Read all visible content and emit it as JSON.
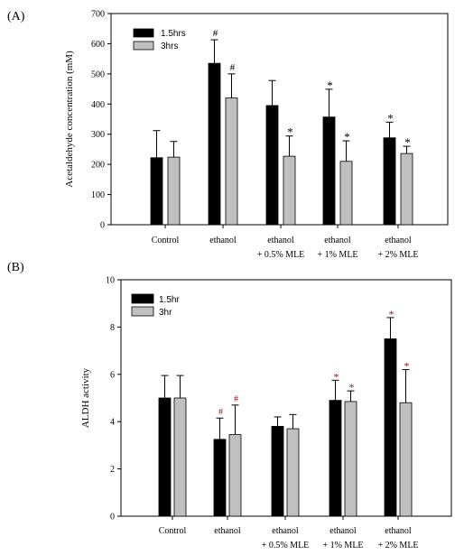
{
  "chart_data": [
    {
      "panel": "(A)",
      "type": "bar",
      "ylabel": "Acetaldehyde concentration (mM)",
      "ylim": [
        0,
        700
      ],
      "yticks": [
        0,
        100,
        200,
        300,
        400,
        500,
        600,
        700
      ],
      "categories": [
        [
          "Control"
        ],
        [
          "ethanol"
        ],
        [
          "ethanol",
          "+ 0.5% MLE"
        ],
        [
          "ethanol",
          "+ 1% MLE"
        ],
        [
          "ethanol",
          "+ 2% MLE"
        ]
      ],
      "legend_position": "top-left",
      "series": [
        {
          "name": "1.5hrs",
          "color": "#000000",
          "values": [
            222,
            535,
            395,
            357,
            288
          ],
          "errors": [
            90,
            78,
            83,
            92,
            52
          ],
          "marks": [
            "",
            "#",
            "",
            "*",
            "*"
          ]
        },
        {
          "name": "3hrs",
          "color": "#c0c0c0",
          "values": [
            224,
            420,
            227,
            210,
            236
          ],
          "errors": [
            52,
            80,
            67,
            68,
            24
          ],
          "marks": [
            "",
            "#",
            "*",
            "*",
            "*"
          ]
        }
      ]
    },
    {
      "panel": "(B)",
      "type": "bar",
      "ylabel": "ALDH activity",
      "ylim": [
        0,
        10
      ],
      "yticks": [
        0,
        2,
        4,
        6,
        8,
        10
      ],
      "categories": [
        [
          "Control"
        ],
        [
          "ethanol"
        ],
        [
          "ethanol",
          "+ 0.5% MLE"
        ],
        [
          "ethanol",
          "+ 1% MLE"
        ],
        [
          "ethanol",
          "+ 2% MLE"
        ]
      ],
      "legend_position": "top-left",
      "series": [
        {
          "name": "1.5hr",
          "color": "#000000",
          "values": [
            5.0,
            3.25,
            3.8,
            4.9,
            7.5
          ],
          "errors": [
            0.95,
            0.9,
            0.4,
            0.85,
            0.9
          ],
          "marks": [
            "",
            "#",
            "",
            "*",
            "*"
          ]
        },
        {
          "name": "3hr",
          "color": "#c0c0c0",
          "values": [
            5.0,
            3.45,
            3.7,
            4.85,
            4.8
          ],
          "errors": [
            0.95,
            1.25,
            0.6,
            0.45,
            1.4
          ],
          "marks": [
            "",
            "#",
            "",
            "*",
            "*"
          ]
        }
      ],
      "mark_color": "#8b1a1a"
    }
  ]
}
